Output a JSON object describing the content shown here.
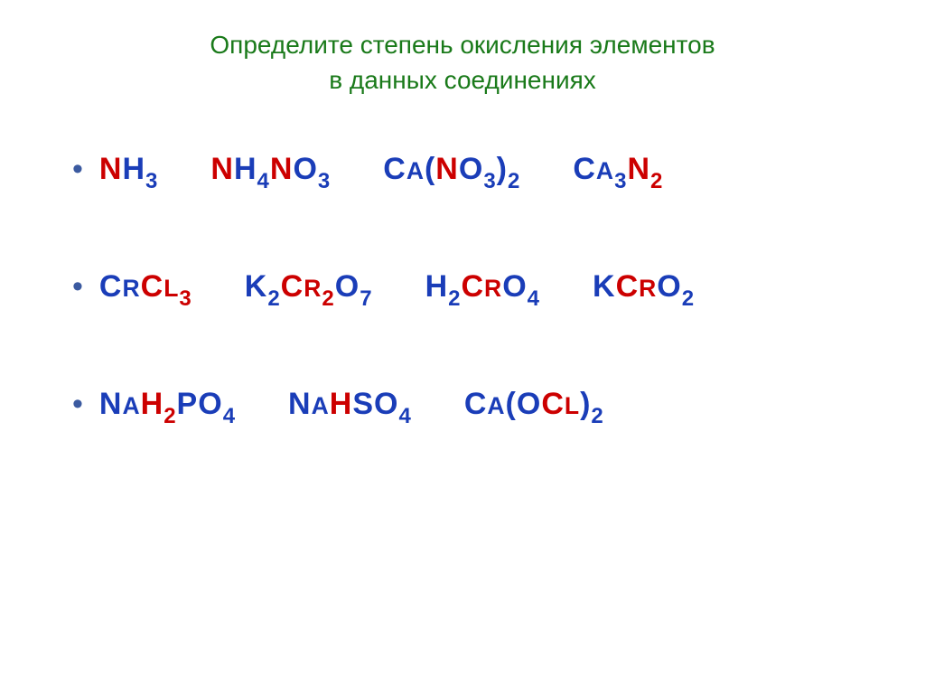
{
  "title": {
    "line1": "Определите степень окисления элементов",
    "line2": "в данных соединениях",
    "color": "#1a7a1a",
    "fontsize": 28
  },
  "colors": {
    "red": "#cc0000",
    "blue": "#1a3db8",
    "green": "#1a7a1a",
    "bullet": "#3b5aa0"
  },
  "fontsize_formula": 34,
  "fontsize_sub": 24,
  "row_gap": 85,
  "formula_gap": 58,
  "rows": [
    {
      "formulas": [
        {
          "parts": [
            {
              "t": "N",
              "c": "red"
            },
            {
              "t": "H",
              "c": "blue"
            },
            {
              "t": "3",
              "c": "blue",
              "sub": true
            }
          ]
        },
        {
          "parts": [
            {
              "t": "N",
              "c": "red"
            },
            {
              "t": "H",
              "c": "blue"
            },
            {
              "t": "4",
              "c": "blue",
              "sub": true
            },
            {
              "t": "N",
              "c": "red"
            },
            {
              "t": "O",
              "c": "blue"
            },
            {
              "t": "3",
              "c": "blue",
              "sub": true
            }
          ]
        },
        {
          "parts": [
            {
              "t": "C",
              "c": "blue"
            },
            {
              "t": "A",
              "c": "blue",
              "small": true
            },
            {
              "t": "(",
              "c": "blue"
            },
            {
              "t": "N",
              "c": "red"
            },
            {
              "t": "O",
              "c": "blue"
            },
            {
              "t": "3",
              "c": "blue",
              "sub": true
            },
            {
              "t": ")",
              "c": "blue"
            },
            {
              "t": "2",
              "c": "blue",
              "sub": true
            }
          ]
        },
        {
          "parts": [
            {
              "t": "C",
              "c": "blue"
            },
            {
              "t": "A",
              "c": "blue",
              "small": true
            },
            {
              "t": "3",
              "c": "blue",
              "sub": true
            },
            {
              "t": "N",
              "c": "red"
            },
            {
              "t": "2",
              "c": "red",
              "sub": true
            }
          ]
        }
      ]
    },
    {
      "formulas": [
        {
          "parts": [
            {
              "t": "C",
              "c": "blue"
            },
            {
              "t": "R",
              "c": "blue",
              "small": true
            },
            {
              "t": "C",
              "c": "red"
            },
            {
              "t": "L",
              "c": "red",
              "small": true
            },
            {
              "t": "3",
              "c": "red",
              "sub": true
            }
          ]
        },
        {
          "parts": [
            {
              "t": "K",
              "c": "blue"
            },
            {
              "t": "2",
              "c": "blue",
              "sub": true
            },
            {
              "t": "C",
              "c": "red"
            },
            {
              "t": "R",
              "c": "red",
              "small": true
            },
            {
              "t": "2",
              "c": "red",
              "sub": true
            },
            {
              "t": "O",
              "c": "blue"
            },
            {
              "t": "7",
              "c": "blue",
              "sub": true
            }
          ]
        },
        {
          "parts": [
            {
              "t": "H",
              "c": "blue"
            },
            {
              "t": "2",
              "c": "blue",
              "sub": true
            },
            {
              "t": "C",
              "c": "red"
            },
            {
              "t": "R",
              "c": "red",
              "small": true
            },
            {
              "t": "O",
              "c": "blue"
            },
            {
              "t": "4",
              "c": "blue",
              "sub": true
            }
          ]
        },
        {
          "parts": [
            {
              "t": "K",
              "c": "blue"
            },
            {
              "t": "C",
              "c": "red"
            },
            {
              "t": "R",
              "c": "red",
              "small": true
            },
            {
              "t": "O",
              "c": "blue"
            },
            {
              "t": "2",
              "c": "blue",
              "sub": true
            }
          ]
        }
      ]
    },
    {
      "formulas": [
        {
          "parts": [
            {
              "t": "N",
              "c": "blue"
            },
            {
              "t": "A",
              "c": "blue",
              "small": true
            },
            {
              "t": "H",
              "c": "red"
            },
            {
              "t": "2",
              "c": "red",
              "sub": true
            },
            {
              "t": "P",
              "c": "blue"
            },
            {
              "t": "O",
              "c": "blue"
            },
            {
              "t": "4",
              "c": "blue",
              "sub": true
            }
          ]
        },
        {
          "parts": [
            {
              "t": "N",
              "c": "blue"
            },
            {
              "t": "A",
              "c": "blue",
              "small": true
            },
            {
              "t": "H",
              "c": "red"
            },
            {
              "t": "S",
              "c": "blue"
            },
            {
              "t": "O",
              "c": "blue"
            },
            {
              "t": "4",
              "c": "blue",
              "sub": true
            }
          ]
        },
        {
          "parts": [
            {
              "t": "C",
              "c": "blue"
            },
            {
              "t": "A",
              "c": "blue",
              "small": true
            },
            {
              "t": "(",
              "c": "blue"
            },
            {
              "t": "O",
              "c": "blue"
            },
            {
              "t": "C",
              "c": "red"
            },
            {
              "t": "L",
              "c": "red",
              "small": true
            },
            {
              "t": ")",
              "c": "blue"
            },
            {
              "t": "2",
              "c": "blue",
              "sub": true
            }
          ]
        }
      ]
    }
  ]
}
